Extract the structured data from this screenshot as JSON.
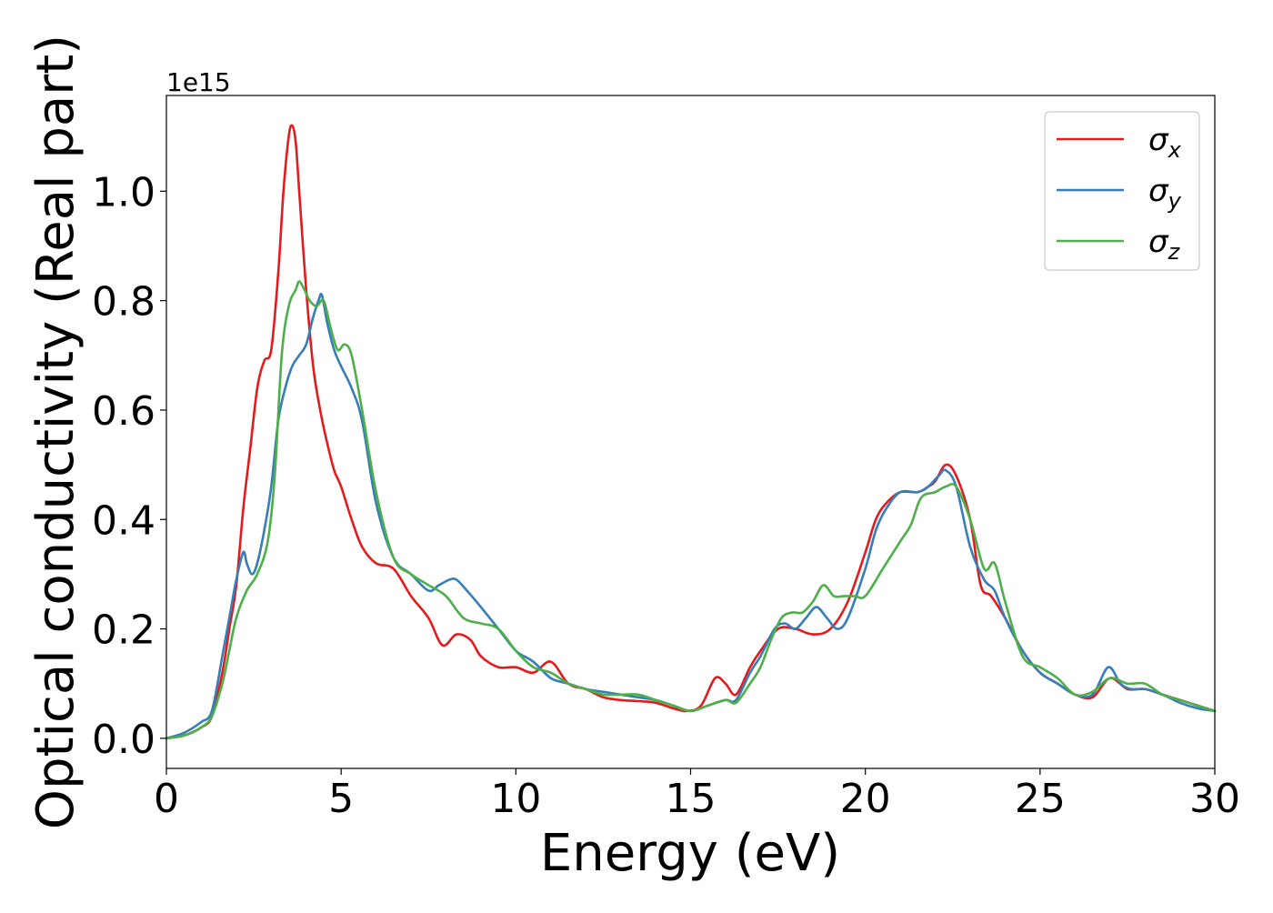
{
  "chart_data": {
    "type": "line",
    "title": "",
    "xlabel": "Energy (eV)",
    "ylabel": "Optical conductivity (Real part)",
    "y_offset_label": "1e15",
    "xlim": [
      0,
      30
    ],
    "ylim": [
      -0.055,
      1.175
    ],
    "xticks": [
      0,
      5,
      10,
      15,
      20,
      25,
      30
    ],
    "yticks": [
      0.0,
      0.2,
      0.4,
      0.6,
      0.8,
      1.0
    ],
    "grid": false,
    "legend": {
      "position": "top-right"
    },
    "series": [
      {
        "name": "σx",
        "symbol": "σ",
        "subscript": "x",
        "color": "#e41a1c",
        "x": [
          0,
          0.5,
          1.0,
          1.3,
          1.6,
          1.8,
          2.0,
          2.2,
          2.4,
          2.6,
          2.8,
          3.0,
          3.2,
          3.35,
          3.5,
          3.6,
          3.7,
          3.8,
          4.0,
          4.2,
          4.4,
          4.6,
          4.8,
          5.0,
          5.3,
          5.6,
          6.0,
          6.5,
          7.0,
          7.5,
          7.9,
          8.3,
          8.7,
          9.0,
          9.5,
          10.0,
          10.5,
          11.0,
          11.5,
          12.0,
          12.5,
          13.0,
          13.5,
          14.0,
          14.5,
          14.9,
          15.3,
          15.7,
          16.0,
          16.3,
          16.7,
          17.0,
          17.5,
          18.0,
          18.5,
          19.0,
          19.5,
          20.0,
          20.3,
          20.6,
          21.0,
          21.5,
          21.8,
          22.0,
          22.3,
          22.6,
          23.0,
          23.3,
          23.6,
          24.0,
          24.5,
          25.0,
          25.5,
          26.0,
          26.5,
          27.0,
          27.5,
          28.0,
          28.5,
          29.0,
          30.0
        ],
        "y": [
          0.0,
          0.005,
          0.02,
          0.04,
          0.12,
          0.2,
          0.28,
          0.42,
          0.53,
          0.64,
          0.69,
          0.71,
          0.85,
          1.0,
          1.1,
          1.12,
          1.09,
          1.0,
          0.82,
          0.68,
          0.6,
          0.54,
          0.49,
          0.46,
          0.4,
          0.35,
          0.32,
          0.31,
          0.26,
          0.22,
          0.17,
          0.19,
          0.18,
          0.15,
          0.13,
          0.13,
          0.12,
          0.14,
          0.1,
          0.09,
          0.075,
          0.07,
          0.068,
          0.065,
          0.055,
          0.05,
          0.06,
          0.11,
          0.1,
          0.08,
          0.13,
          0.16,
          0.2,
          0.2,
          0.19,
          0.2,
          0.25,
          0.34,
          0.4,
          0.43,
          0.45,
          0.45,
          0.46,
          0.47,
          0.5,
          0.48,
          0.4,
          0.28,
          0.26,
          0.22,
          0.16,
          0.12,
          0.1,
          0.08,
          0.075,
          0.11,
          0.09,
          0.09,
          0.08,
          0.07,
          0.05
        ]
      },
      {
        "name": "σy",
        "symbol": "σ",
        "subscript": "y",
        "color": "#377eb8",
        "x": [
          0,
          0.5,
          1.0,
          1.3,
          1.6,
          1.8,
          2.0,
          2.2,
          2.3,
          2.45,
          2.6,
          2.8,
          3.0,
          3.2,
          3.4,
          3.6,
          3.8,
          4.0,
          4.2,
          4.35,
          4.45,
          4.6,
          4.8,
          5.0,
          5.3,
          5.6,
          6.0,
          6.5,
          7.0,
          7.5,
          7.8,
          8.1,
          8.3,
          8.6,
          9.0,
          9.5,
          10.0,
          10.5,
          11.0,
          11.5,
          12.0,
          12.5,
          13.0,
          13.5,
          14.0,
          14.5,
          15.0,
          15.5,
          16.0,
          16.3,
          16.7,
          17.0,
          17.4,
          17.7,
          18.0,
          18.3,
          18.6,
          18.9,
          19.2,
          19.5,
          20.0,
          20.3,
          20.6,
          21.0,
          21.5,
          21.8,
          22.1,
          22.3,
          22.6,
          23.0,
          23.4,
          23.7,
          24.0,
          24.5,
          25.0,
          25.5,
          26.0,
          26.5,
          26.95,
          27.3,
          27.6,
          28.0,
          28.5,
          29.0,
          29.5,
          30.0
        ],
        "y": [
          0.0,
          0.01,
          0.03,
          0.05,
          0.15,
          0.22,
          0.29,
          0.34,
          0.32,
          0.3,
          0.32,
          0.38,
          0.46,
          0.58,
          0.64,
          0.68,
          0.7,
          0.72,
          0.77,
          0.8,
          0.81,
          0.76,
          0.71,
          0.68,
          0.64,
          0.58,
          0.43,
          0.33,
          0.3,
          0.27,
          0.28,
          0.29,
          0.29,
          0.27,
          0.24,
          0.2,
          0.16,
          0.14,
          0.11,
          0.1,
          0.09,
          0.085,
          0.08,
          0.075,
          0.07,
          0.06,
          0.05,
          0.06,
          0.07,
          0.07,
          0.12,
          0.15,
          0.2,
          0.21,
          0.2,
          0.22,
          0.24,
          0.22,
          0.2,
          0.22,
          0.31,
          0.38,
          0.42,
          0.45,
          0.45,
          0.46,
          0.48,
          0.49,
          0.46,
          0.35,
          0.29,
          0.27,
          0.22,
          0.16,
          0.12,
          0.1,
          0.08,
          0.08,
          0.13,
          0.1,
          0.09,
          0.09,
          0.08,
          0.065,
          0.055,
          0.05
        ]
      },
      {
        "name": "σz",
        "symbol": "σ",
        "subscript": "z",
        "color": "#4daf4a",
        "x": [
          0,
          0.5,
          1.0,
          1.3,
          1.6,
          1.8,
          2.0,
          2.3,
          2.6,
          2.9,
          3.1,
          3.3,
          3.5,
          3.7,
          3.8,
          3.95,
          4.1,
          4.3,
          4.5,
          4.7,
          4.9,
          5.1,
          5.3,
          5.6,
          6.0,
          6.5,
          7.0,
          7.5,
          8.0,
          8.5,
          9.0,
          9.5,
          10.0,
          10.5,
          11.0,
          11.5,
          12.0,
          12.5,
          13.0,
          13.5,
          14.0,
          14.5,
          15.0,
          15.5,
          16.0,
          16.3,
          16.7,
          17.0,
          17.3,
          17.6,
          17.9,
          18.2,
          18.5,
          18.8,
          19.1,
          19.4,
          19.7,
          20.0,
          20.5,
          21.0,
          21.3,
          21.6,
          22.0,
          22.3,
          22.6,
          23.0,
          23.4,
          23.7,
          24.0,
          24.5,
          25.0,
          25.5,
          26.0,
          26.5,
          27.0,
          27.5,
          28.0,
          28.5,
          29.0,
          30.0
        ],
        "y": [
          0.0,
          0.005,
          0.02,
          0.04,
          0.1,
          0.16,
          0.22,
          0.27,
          0.3,
          0.36,
          0.48,
          0.7,
          0.79,
          0.82,
          0.835,
          0.82,
          0.8,
          0.79,
          0.8,
          0.75,
          0.71,
          0.72,
          0.7,
          0.6,
          0.45,
          0.33,
          0.3,
          0.28,
          0.26,
          0.22,
          0.21,
          0.2,
          0.16,
          0.13,
          0.12,
          0.1,
          0.09,
          0.08,
          0.08,
          0.08,
          0.07,
          0.06,
          0.05,
          0.06,
          0.07,
          0.065,
          0.1,
          0.13,
          0.18,
          0.22,
          0.23,
          0.23,
          0.25,
          0.28,
          0.26,
          0.26,
          0.26,
          0.26,
          0.31,
          0.36,
          0.39,
          0.44,
          0.45,
          0.46,
          0.46,
          0.4,
          0.31,
          0.32,
          0.25,
          0.15,
          0.13,
          0.11,
          0.08,
          0.085,
          0.11,
          0.1,
          0.1,
          0.08,
          0.07,
          0.05
        ]
      }
    ]
  }
}
